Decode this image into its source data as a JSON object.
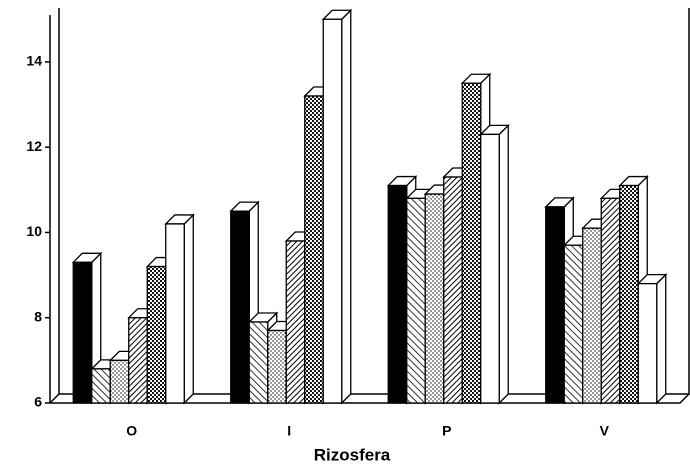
{
  "chart_data": {
    "type": "bar3d",
    "x_label": "Rizosfera",
    "categories": [
      "O",
      "I",
      "P",
      "V"
    ],
    "series": [
      {
        "color": "#000000",
        "pattern": "solid",
        "values": [
          9.3,
          10.5,
          11.1,
          10.6
        ]
      },
      {
        "color": "#000000",
        "pattern": "hatch-back",
        "values": [
          6.8,
          7.9,
          10.8,
          9.7
        ]
      },
      {
        "color": "#000000",
        "pattern": "dots-light",
        "values": [
          7.0,
          7.7,
          10.9,
          10.1
        ]
      },
      {
        "color": "#000000",
        "pattern": "hatch-forward",
        "values": [
          8.0,
          9.8,
          11.3,
          10.8
        ]
      },
      {
        "color": "#000000",
        "pattern": "dots-dense",
        "values": [
          9.2,
          13.2,
          13.5,
          11.1
        ]
      },
      {
        "color": "#000000",
        "pattern": "none",
        "values": [
          10.2,
          15.0,
          12.3,
          8.8
        ]
      }
    ],
    "ylim": [
      6,
      15.1
    ],
    "yticks": [
      6,
      8,
      10,
      12,
      14
    ]
  }
}
